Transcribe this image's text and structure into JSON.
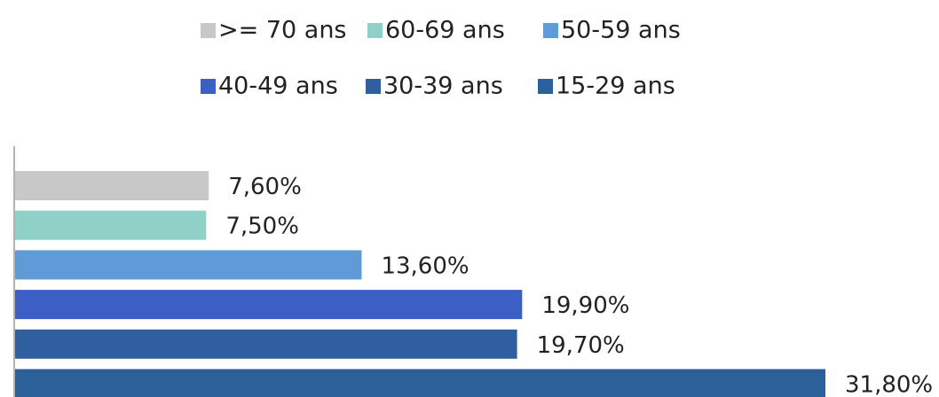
{
  "chart_data": {
    "type": "hbar",
    "series": [
      {
        "name": ">= 70 ans",
        "color": "#c8c8c8",
        "values": [
          7.6
        ],
        "value_labels": [
          "7,60%"
        ]
      },
      {
        "name": "60-69 ans",
        "color": "#8fd0c9",
        "values": [
          7.5
        ],
        "value_labels": [
          "7,50%"
        ]
      },
      {
        "name": "50-59 ans",
        "color": "#5f9bd6",
        "values": [
          13.6
        ],
        "value_labels": [
          "13,60%"
        ]
      },
      {
        "name": "40-49 ans",
        "color": "#3b5fc4",
        "values": [
          19.9
        ],
        "value_labels": [
          "19,90%"
        ]
      },
      {
        "name": "30-39 ans",
        "color": "#2f5f9f",
        "values": [
          19.7
        ],
        "value_labels": [
          "19,70%"
        ]
      },
      {
        "name": "15-29 ans",
        "color": "#2c6099",
        "values": [
          31.8
        ],
        "value_labels": [
          "31,80%"
        ]
      }
    ]
  }
}
